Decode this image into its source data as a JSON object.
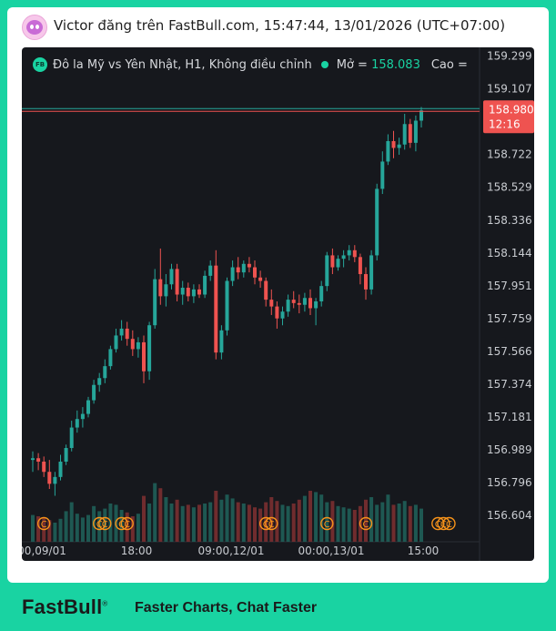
{
  "header": {
    "text": "Victor đăng trên FastBull.com,    15:47:44, 13/01/2026 (UTC+07:00)"
  },
  "legend": {
    "badge": "FB",
    "title": "Đô la Mỹ vs Yên Nhật, H1, Không điều chỉnh",
    "open_label": "Mở =",
    "open_value": "158.083",
    "high_label": "Cao ="
  },
  "price_tag": {
    "price": "158.980",
    "countdown": "12:16"
  },
  "colors": {
    "up": "#26a69a",
    "down": "#ef5350",
    "background": "#16181d",
    "accent": "#19d3a2",
    "marker": "#f7931a"
  },
  "marker_icon": "c-circle-icon",
  "chart_data": {
    "type": "candlestick",
    "instrument": "USDJPY",
    "ylim": [
      156.45,
      159.35
    ],
    "y_ticks": [
      "159.299",
      "159.107",
      "158.722",
      "158.529",
      "158.336",
      "158.144",
      "157.951",
      "157.759",
      "157.566",
      "157.374",
      "157.181",
      "156.989",
      "156.796",
      "156.604"
    ],
    "x_tick_labels": [
      "00,09/01",
      "18:00",
      "09:00,12/01",
      "00:00,13/01",
      "15:00"
    ],
    "current_price": 158.98,
    "candles": [
      {
        "o": 156.93,
        "h": 156.98,
        "l": 156.86,
        "c": 156.94
      },
      {
        "o": 156.94,
        "h": 156.97,
        "l": 156.87,
        "c": 156.92
      },
      {
        "o": 156.92,
        "h": 156.95,
        "l": 156.83,
        "c": 156.86
      },
      {
        "o": 156.86,
        "h": 156.93,
        "l": 156.76,
        "c": 156.79
      },
      {
        "o": 156.79,
        "h": 156.86,
        "l": 156.72,
        "c": 156.83
      },
      {
        "o": 156.83,
        "h": 156.96,
        "l": 156.81,
        "c": 156.92
      },
      {
        "o": 156.92,
        "h": 157.02,
        "l": 156.9,
        "c": 157.0
      },
      {
        "o": 157.0,
        "h": 157.16,
        "l": 156.98,
        "c": 157.12
      },
      {
        "o": 157.12,
        "h": 157.22,
        "l": 157.09,
        "c": 157.17
      },
      {
        "o": 157.17,
        "h": 157.24,
        "l": 157.12,
        "c": 157.2
      },
      {
        "o": 157.2,
        "h": 157.3,
        "l": 157.18,
        "c": 157.28
      },
      {
        "o": 157.28,
        "h": 157.4,
        "l": 157.26,
        "c": 157.37
      },
      {
        "o": 157.37,
        "h": 157.44,
        "l": 157.33,
        "c": 157.41
      },
      {
        "o": 157.41,
        "h": 157.52,
        "l": 157.38,
        "c": 157.48
      },
      {
        "o": 157.48,
        "h": 157.6,
        "l": 157.46,
        "c": 157.58
      },
      {
        "o": 157.58,
        "h": 157.7,
        "l": 157.56,
        "c": 157.66
      },
      {
        "o": 157.66,
        "h": 157.75,
        "l": 157.63,
        "c": 157.7
      },
      {
        "o": 157.7,
        "h": 157.74,
        "l": 157.6,
        "c": 157.64
      },
      {
        "o": 157.64,
        "h": 157.69,
        "l": 157.54,
        "c": 157.58
      },
      {
        "o": 157.58,
        "h": 157.65,
        "l": 157.53,
        "c": 157.62
      },
      {
        "o": 157.62,
        "h": 157.66,
        "l": 157.38,
        "c": 157.45
      },
      {
        "o": 157.45,
        "h": 157.74,
        "l": 157.4,
        "c": 157.72
      },
      {
        "o": 157.72,
        "h": 158.05,
        "l": 157.7,
        "c": 157.99
      },
      {
        "o": 157.99,
        "h": 158.17,
        "l": 157.84,
        "c": 157.89
      },
      {
        "o": 157.89,
        "h": 158.02,
        "l": 157.83,
        "c": 157.96
      },
      {
        "o": 157.96,
        "h": 158.08,
        "l": 157.93,
        "c": 158.05
      },
      {
        "o": 158.05,
        "h": 158.08,
        "l": 157.86,
        "c": 157.9
      },
      {
        "o": 157.9,
        "h": 157.98,
        "l": 157.84,
        "c": 157.94
      },
      {
        "o": 157.94,
        "h": 157.97,
        "l": 157.86,
        "c": 157.89
      },
      {
        "o": 157.89,
        "h": 157.96,
        "l": 157.85,
        "c": 157.93
      },
      {
        "o": 157.93,
        "h": 157.96,
        "l": 157.88,
        "c": 157.9
      },
      {
        "o": 157.9,
        "h": 158.04,
        "l": 157.88,
        "c": 158.01
      },
      {
        "o": 158.01,
        "h": 158.1,
        "l": 157.98,
        "c": 158.07
      },
      {
        "o": 158.07,
        "h": 158.16,
        "l": 157.52,
        "c": 157.56
      },
      {
        "o": 157.56,
        "h": 157.72,
        "l": 157.52,
        "c": 157.69
      },
      {
        "o": 157.69,
        "h": 158.0,
        "l": 157.66,
        "c": 157.98
      },
      {
        "o": 157.98,
        "h": 158.1,
        "l": 157.95,
        "c": 158.06
      },
      {
        "o": 158.06,
        "h": 158.12,
        "l": 157.99,
        "c": 158.03
      },
      {
        "o": 158.03,
        "h": 158.1,
        "l": 158.0,
        "c": 158.08
      },
      {
        "o": 158.08,
        "h": 158.12,
        "l": 158.03,
        "c": 158.06
      },
      {
        "o": 158.06,
        "h": 158.1,
        "l": 157.96,
        "c": 158.0
      },
      {
        "o": 158.0,
        "h": 158.04,
        "l": 157.94,
        "c": 157.98
      },
      {
        "o": 157.98,
        "h": 158.0,
        "l": 157.83,
        "c": 157.87
      },
      {
        "o": 157.87,
        "h": 157.93,
        "l": 157.78,
        "c": 157.83
      },
      {
        "o": 157.83,
        "h": 157.86,
        "l": 157.7,
        "c": 157.76
      },
      {
        "o": 157.76,
        "h": 157.83,
        "l": 157.72,
        "c": 157.8
      },
      {
        "o": 157.8,
        "h": 157.9,
        "l": 157.77,
        "c": 157.87
      },
      {
        "o": 157.87,
        "h": 157.92,
        "l": 157.82,
        "c": 157.85
      },
      {
        "o": 157.85,
        "h": 157.9,
        "l": 157.79,
        "c": 157.84
      },
      {
        "o": 157.84,
        "h": 157.91,
        "l": 157.8,
        "c": 157.88
      },
      {
        "o": 157.88,
        "h": 157.93,
        "l": 157.78,
        "c": 157.82
      },
      {
        "o": 157.82,
        "h": 157.88,
        "l": 157.72,
        "c": 157.86
      },
      {
        "o": 157.86,
        "h": 157.98,
        "l": 157.83,
        "c": 157.95
      },
      {
        "o": 157.95,
        "h": 158.15,
        "l": 157.92,
        "c": 158.13
      },
      {
        "o": 158.13,
        "h": 158.17,
        "l": 158.02,
        "c": 158.06
      },
      {
        "o": 158.06,
        "h": 158.13,
        "l": 158.04,
        "c": 158.11
      },
      {
        "o": 158.11,
        "h": 158.16,
        "l": 158.06,
        "c": 158.13
      },
      {
        "o": 158.13,
        "h": 158.19,
        "l": 158.1,
        "c": 158.16
      },
      {
        "o": 158.16,
        "h": 158.19,
        "l": 158.09,
        "c": 158.12
      },
      {
        "o": 158.12,
        "h": 158.14,
        "l": 157.96,
        "c": 158.02
      },
      {
        "o": 158.02,
        "h": 158.06,
        "l": 157.87,
        "c": 157.93
      },
      {
        "o": 157.93,
        "h": 158.16,
        "l": 157.9,
        "c": 158.13
      },
      {
        "o": 158.13,
        "h": 158.55,
        "l": 158.1,
        "c": 158.52
      },
      {
        "o": 158.52,
        "h": 158.74,
        "l": 158.49,
        "c": 158.68
      },
      {
        "o": 158.68,
        "h": 158.84,
        "l": 158.66,
        "c": 158.8
      },
      {
        "o": 158.8,
        "h": 158.86,
        "l": 158.7,
        "c": 158.76
      },
      {
        "o": 158.76,
        "h": 158.82,
        "l": 158.72,
        "c": 158.78
      },
      {
        "o": 158.78,
        "h": 158.96,
        "l": 158.75,
        "c": 158.9
      },
      {
        "o": 158.9,
        "h": 158.93,
        "l": 158.76,
        "c": 158.79
      },
      {
        "o": 158.79,
        "h": 158.95,
        "l": 158.74,
        "c": 158.92
      },
      {
        "o": 158.92,
        "h": 159.0,
        "l": 158.88,
        "c": 158.98
      }
    ],
    "volume": [
      42,
      40,
      38,
      34,
      30,
      36,
      48,
      62,
      44,
      38,
      42,
      56,
      48,
      52,
      60,
      58,
      50,
      46,
      40,
      44,
      72,
      60,
      92,
      84,
      70,
      60,
      66,
      56,
      58,
      54,
      58,
      60,
      62,
      80,
      66,
      74,
      68,
      62,
      60,
      58,
      54,
      52,
      62,
      70,
      64,
      58,
      56,
      60,
      66,
      72,
      80,
      78,
      74,
      62,
      64,
      56,
      54,
      52,
      50,
      56,
      66,
      70,
      58,
      62,
      74,
      58,
      60,
      64,
      56,
      58,
      52
    ],
    "event_markers": [
      2,
      12,
      13,
      16,
      17,
      42,
      43,
      53,
      60,
      73,
      74,
      75
    ]
  }
}
